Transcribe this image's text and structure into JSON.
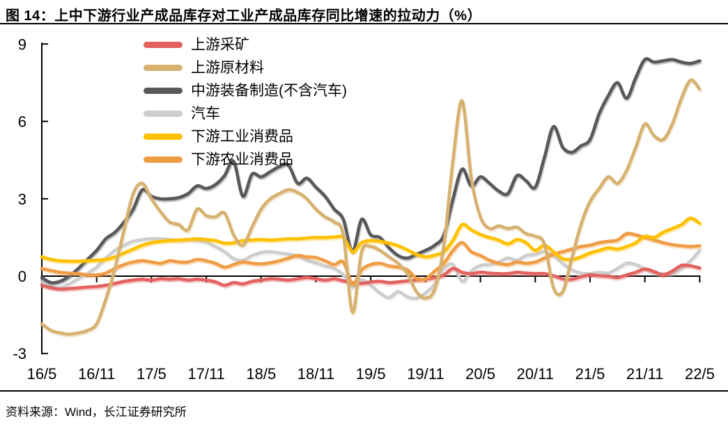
{
  "page": {
    "title": "图 14：上中下游行业产成品库存对工业产成品库存同比增速的拉动力（%）",
    "source_note": "资料来源：Wind，长江证券研究所"
  },
  "chart_data": {
    "type": "line",
    "title": "图 14：上中下游行业产成品库存对工业产成品库存同比增速的拉动力（%）",
    "unit": "%",
    "x_frequency": "monthly",
    "x_start": "16/5",
    "x_end": "22/5",
    "x_tick_labels": [
      "16/5",
      "16/11",
      "17/5",
      "17/11",
      "18/5",
      "18/11",
      "19/5",
      "19/11",
      "20/5",
      "20/11",
      "21/5",
      "21/11",
      "22/5"
    ],
    "y_ticks": [
      9,
      6,
      3,
      0,
      -3
    ],
    "ylim": [
      -3,
      9
    ],
    "grid": false,
    "legend_position": "top-left",
    "axis_color": "#000000",
    "series": [
      {
        "id": "upstream-mining",
        "name": "上游采矿",
        "color": "#E2625E",
        "values": [
          -0.35,
          -0.45,
          -0.5,
          -0.48,
          -0.45,
          -0.42,
          -0.4,
          -0.35,
          -0.28,
          -0.2,
          -0.15,
          -0.12,
          -0.15,
          -0.1,
          -0.12,
          -0.1,
          -0.15,
          -0.12,
          -0.15,
          -0.22,
          -0.35,
          -0.25,
          -0.3,
          -0.2,
          -0.15,
          -0.1,
          -0.12,
          -0.15,
          -0.1,
          -0.05,
          -0.1,
          -0.15,
          -0.1,
          -0.18,
          -0.25,
          -0.28,
          -0.22,
          -0.2,
          -0.25,
          -0.22,
          -0.18,
          -0.15,
          -0.12,
          -0.05,
          0.05,
          0.3,
          0.15,
          0.1,
          0.15,
          0.12,
          0.1,
          0.1,
          0.15,
          0.12,
          0.1,
          0.1,
          0.02,
          -0.1,
          -0.12,
          -0.02,
          0.05,
          0.02,
          0,
          -0.05,
          0.05,
          0.15,
          0.28,
          0.18,
          0.05,
          0.2,
          0.42,
          0.4,
          0.32
        ]
      },
      {
        "id": "upstream-raw-materials",
        "name": "上游原材料",
        "color": "#D6B16F",
        "values": [
          -1.85,
          -2.1,
          -2.2,
          -2.25,
          -2.2,
          -2.1,
          -1.85,
          -0.9,
          0.3,
          1.8,
          3.2,
          3.6,
          3.0,
          2.5,
          2.1,
          2.0,
          1.8,
          2.6,
          2.35,
          2.3,
          2.45,
          1.6,
          1.2,
          1.9,
          2.6,
          3.0,
          3.2,
          3.35,
          3.25,
          3.0,
          2.6,
          2.3,
          2.1,
          1.6,
          -1.4,
          0.95,
          1.15,
          1.0,
          0.75,
          0.5,
          0.1,
          -0.6,
          -0.85,
          -0.5,
          1.2,
          4.5,
          6.8,
          3.8,
          2.3,
          1.85,
          1.95,
          1.85,
          1.9,
          1.65,
          1.55,
          1.25,
          -0.45,
          -0.6,
          0.7,
          2.0,
          2.9,
          3.4,
          3.85,
          3.6,
          4.1,
          5.0,
          5.9,
          5.45,
          5.3,
          5.9,
          6.9,
          7.6,
          7.25
        ]
      },
      {
        "id": "midstream-equipment-mfg",
        "name": "中游装备制造(不含汽车)",
        "color": "#58595B",
        "values": [
          -0.05,
          -0.25,
          -0.2,
          0,
          0.3,
          0.65,
          1.0,
          1.45,
          1.7,
          2.1,
          2.6,
          3.35,
          3.1,
          3.0,
          3.0,
          3.05,
          3.2,
          3.5,
          3.4,
          3.55,
          3.9,
          4.45,
          3.1,
          3.95,
          3.85,
          4.05,
          4.25,
          4.3,
          3.6,
          3.8,
          3.45,
          3.1,
          2.6,
          2.2,
          0.95,
          2.2,
          1.6,
          1.5,
          1.1,
          0.8,
          0.7,
          0.85,
          1.0,
          1.2,
          1.6,
          3.0,
          4.15,
          3.5,
          3.85,
          3.6,
          3.3,
          3.2,
          3.9,
          3.7,
          3.45,
          4.6,
          5.8,
          5.0,
          4.8,
          5.05,
          5.3,
          6.3,
          7.0,
          7.5,
          6.9,
          7.7,
          8.4,
          8.3,
          8.35,
          8.4,
          8.3,
          8.25,
          8.35
        ]
      },
      {
        "id": "autos",
        "name": "汽车",
        "color": "#CDCDCD",
        "values": [
          -0.2,
          -0.4,
          -0.45,
          -0.3,
          -0.1,
          0.1,
          0.35,
          0.7,
          1.0,
          1.2,
          1.35,
          1.42,
          1.45,
          1.45,
          1.42,
          1.4,
          1.42,
          1.38,
          1.32,
          1.15,
          0.95,
          0.68,
          0.62,
          0.8,
          0.92,
          0.95,
          0.9,
          0.85,
          0.78,
          0.62,
          0.52,
          0.4,
          0.3,
          0.05,
          -0.42,
          -0.15,
          -0.35,
          -0.65,
          -0.83,
          -0.6,
          -0.8,
          -0.85,
          -0.65,
          -0.3,
          0.3,
          0.45,
          -0.2,
          0.2,
          0.42,
          0.45,
          0.55,
          0.7,
          0.62,
          0.8,
          0.85,
          0.95,
          0.8,
          0.5,
          0.25,
          0.12,
          0.1,
          0.15,
          0.12,
          0.3,
          0.5,
          0.45,
          0.28,
          0.15,
          0.1,
          0.12,
          0.3,
          0.6,
          1.0
        ]
      },
      {
        "id": "downstream-industrial-consumer",
        "name": "下游工业消费品",
        "color": "#FFC000",
        "values": [
          0.75,
          0.65,
          0.6,
          0.58,
          0.58,
          0.6,
          0.62,
          0.65,
          0.75,
          0.9,
          1.05,
          1.2,
          1.3,
          1.35,
          1.38,
          1.4,
          1.42,
          1.45,
          1.42,
          1.38,
          1.28,
          1.3,
          1.38,
          1.4,
          1.42,
          1.4,
          1.42,
          1.45,
          1.45,
          1.48,
          1.5,
          1.5,
          1.52,
          1.5,
          0.95,
          1.3,
          1.38,
          1.35,
          1.28,
          1.18,
          1.02,
          0.85,
          0.75,
          0.82,
          0.95,
          1.4,
          2.0,
          1.8,
          1.62,
          1.5,
          1.4,
          1.25,
          1.42,
          1.3,
          1.0,
          1.2,
          0.95,
          0.68,
          0.65,
          0.75,
          0.9,
          1.0,
          1.1,
          1.05,
          1.15,
          1.3,
          1.55,
          1.5,
          1.7,
          1.85,
          2.0,
          2.25,
          2.05
        ]
      },
      {
        "id": "downstream-agri-consumer",
        "name": "下游农业消费品",
        "color": "#F09C45",
        "values": [
          0.3,
          0.22,
          0.15,
          0.12,
          0.1,
          0.05,
          0.05,
          0.12,
          0.3,
          0.45,
          0.55,
          0.6,
          0.55,
          0.5,
          0.6,
          0.55,
          0.55,
          0.65,
          0.6,
          0.5,
          0.35,
          0.45,
          0.55,
          0.5,
          0.48,
          0.52,
          0.6,
          0.7,
          0.8,
          0.75,
          0.72,
          0.6,
          0.45,
          0.55,
          -0.3,
          0.25,
          0.45,
          0.5,
          0.4,
          0.35,
          0.25,
          -0.08,
          -0.1,
          0.2,
          0.5,
          1.0,
          1.3,
          0.95,
          0.8,
          0.62,
          0.5,
          0.45,
          0.55,
          0.5,
          0.55,
          0.7,
          0.85,
          0.95,
          1.05,
          1.15,
          1.2,
          1.3,
          1.35,
          1.4,
          1.65,
          1.6,
          1.5,
          1.4,
          1.3,
          1.22,
          1.18,
          1.15,
          1.18
        ]
      }
    ],
    "draw_order": [
      "autos",
      "midstream-equipment-mfg",
      "upstream-mining",
      "downstream-agri-consumer",
      "downstream-industrial-consumer",
      "upstream-raw-materials"
    ]
  }
}
